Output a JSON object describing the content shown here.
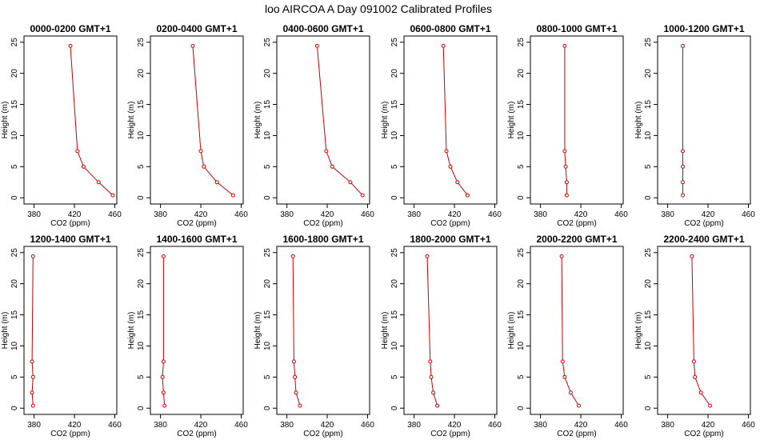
{
  "figure": {
    "title": "loo AIRCOA A  Day 091002  Calibrated Profiles"
  },
  "chart_data": {
    "type": "line",
    "shared": {
      "xlabel": "CO2 (ppm)",
      "ylabel": "Height (m)",
      "xlim": [
        370,
        462
      ],
      "ylim": [
        -1,
        26
      ],
      "xticks": [
        380,
        420,
        460
      ],
      "yticks": [
        0,
        5,
        10,
        15,
        20,
        25
      ],
      "grid": false,
      "heights": [
        24.4,
        7.5,
        5.0,
        2.5,
        0.4
      ],
      "color": "#cc0000"
    },
    "panels": [
      {
        "title": "0000-0200 GMT+1",
        "values": [
          416,
          423,
          429,
          444,
          458
        ]
      },
      {
        "title": "0200-0400 GMT+1",
        "values": [
          412,
          420,
          423,
          436,
          452
        ]
      },
      {
        "title": "0400-0600 GMT+1",
        "values": [
          410,
          419,
          425,
          443,
          455
        ]
      },
      {
        "title": "0600-0800 GMT+1",
        "values": [
          409,
          412,
          416,
          423,
          433
        ]
      },
      {
        "title": "0800-1000 GMT+1",
        "values": [
          404,
          404,
          405,
          406,
          406
        ]
      },
      {
        "title": "1000-1200 GMT+1",
        "values": [
          395,
          395,
          395,
          395,
          395
        ]
      },
      {
        "title": "1200-1400 GMT+1",
        "values": [
          379,
          378,
          379,
          378,
          379
        ]
      },
      {
        "title": "1400-1600 GMT+1",
        "values": [
          383,
          383,
          382,
          383,
          384
        ]
      },
      {
        "title": "1600-1800 GMT+1",
        "values": [
          386,
          387,
          388,
          389,
          393
        ]
      },
      {
        "title": "1800-2000 GMT+1",
        "values": [
          393,
          396,
          397,
          399,
          403
        ]
      },
      {
        "title": "2000-2200 GMT+1",
        "values": [
          401,
          402,
          404,
          410,
          418
        ]
      },
      {
        "title": "2200-2400 GMT+1",
        "values": [
          404,
          406,
          407,
          413,
          422
        ]
      }
    ]
  }
}
